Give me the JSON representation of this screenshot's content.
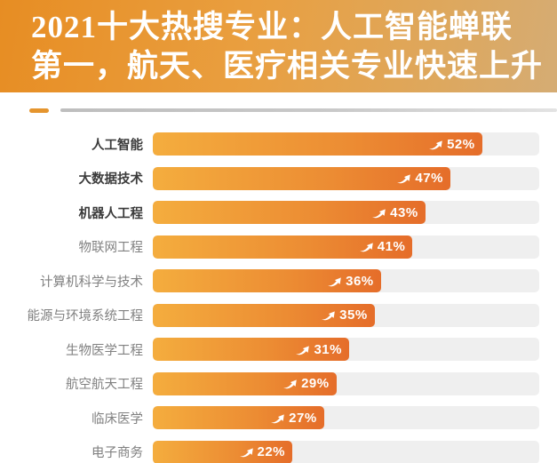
{
  "banner": {
    "title_line1": "2021十大热搜专业：人工智能蝉联",
    "title_line2": "第一，航天、医疗相关专业快速上升",
    "bg_color_left": "#E78D23",
    "bg_color_right": "#D5AC74",
    "text_color": "#FFFFFF"
  },
  "divider": {
    "dash_color": "#E5952E",
    "line_color": "#C4C4C4"
  },
  "chart_data": {
    "type": "bar",
    "orientation": "horizontal",
    "categories": [
      "人工智能",
      "大数据技术",
      "机器人工程",
      "物联网工程",
      "计算机科学与技术",
      "能源与环境系统工程",
      "生物医学工程",
      "航空航天工程",
      "临床医学",
      "电子商务"
    ],
    "values": [
      52,
      47,
      43,
      41,
      36,
      35,
      31,
      29,
      27,
      22
    ],
    "value_suffix": "%",
    "bold_rows": 3,
    "xlim": [
      0,
      61
    ],
    "grid": false,
    "legend": false,
    "bar_color_start": "#F4AD3E",
    "bar_color_end": "#E56D2A",
    "track_color": "#EFEFEF",
    "value_icon": "trend-up-arrow"
  }
}
